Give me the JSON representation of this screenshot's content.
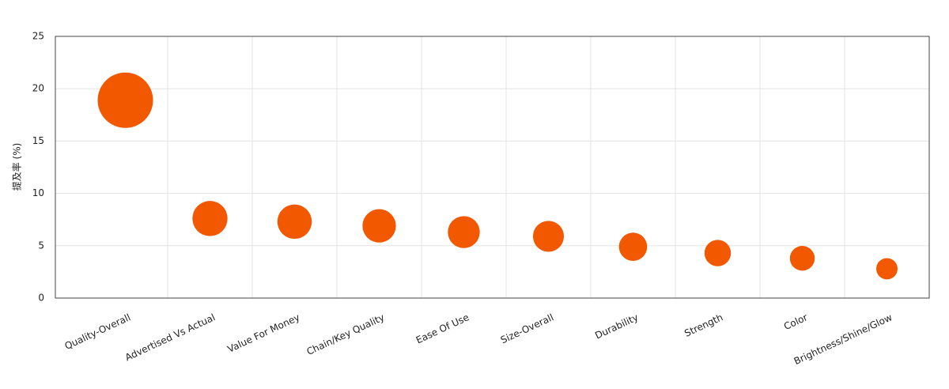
{
  "chart_data": {
    "type": "bubble",
    "y_label": "提及率 (%)",
    "categories": [
      "Quality-Overall",
      "Advertised Vs Actual",
      "Value For Money",
      "Chain/Key Quality",
      "Ease Of Use",
      "Size-Overall",
      "Durability",
      "Strength",
      "Color",
      "Brightness/Shine/Glow"
    ],
    "values": [
      18.9,
      7.6,
      7.3,
      6.9,
      6.3,
      5.9,
      4.9,
      4.3,
      3.8,
      2.8
    ],
    "color": "#f25800",
    "ylim": [
      0,
      25
    ],
    "yticks": [
      0,
      5,
      10,
      15,
      20,
      25
    ],
    "grid": true
  }
}
